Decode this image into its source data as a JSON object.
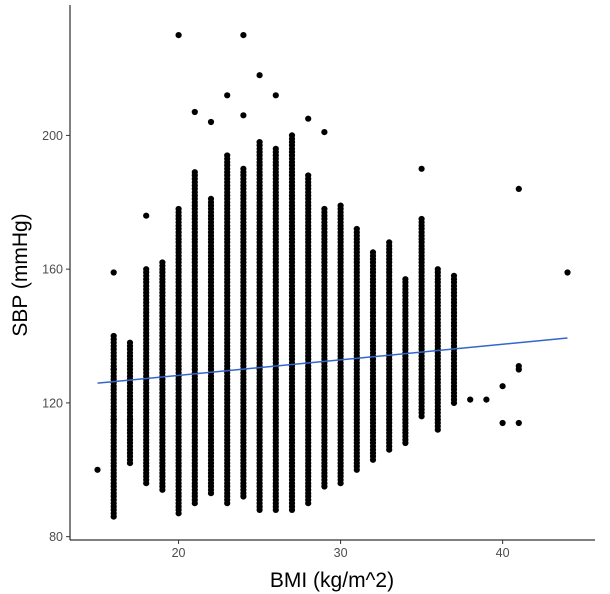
{
  "chart_data": {
    "type": "scatter",
    "title": "",
    "xlabel": "BMI (kg/m^2)",
    "ylabel": "SBP (mmHg)",
    "xlim": [
      13.3,
      45.7
    ],
    "ylim": [
      79,
      239
    ],
    "xticks": [
      20,
      30,
      40
    ],
    "yticks": [
      80,
      120,
      160,
      200
    ],
    "grid": false,
    "legend": "none",
    "point_color": "#000000",
    "trend_color": "#3366cc",
    "trend_line": {
      "x": [
        15,
        44
      ],
      "y": [
        125.9,
        139.4
      ]
    },
    "columns": [
      {
        "x": 15,
        "lo": 100,
        "hi": 100
      },
      {
        "x": 16,
        "lo": 86,
        "hi": 140
      },
      {
        "x": 17,
        "lo": 102,
        "hi": 138
      },
      {
        "x": 18,
        "lo": 96,
        "hi": 160
      },
      {
        "x": 19,
        "lo": 94,
        "hi": 162
      },
      {
        "x": 20,
        "lo": 87,
        "hi": 178
      },
      {
        "x": 21,
        "lo": 90,
        "hi": 189
      },
      {
        "x": 22,
        "lo": 93,
        "hi": 181
      },
      {
        "x": 23,
        "lo": 90,
        "hi": 194
      },
      {
        "x": 24,
        "lo": 92,
        "hi": 190
      },
      {
        "x": 25,
        "lo": 88,
        "hi": 198
      },
      {
        "x": 26,
        "lo": 88,
        "hi": 196
      },
      {
        "x": 27,
        "lo": 88,
        "hi": 200
      },
      {
        "x": 28,
        "lo": 90,
        "hi": 188
      },
      {
        "x": 29,
        "lo": 95,
        "hi": 178
      },
      {
        "x": 30,
        "lo": 96,
        "hi": 179
      },
      {
        "x": 31,
        "lo": 100,
        "hi": 172
      },
      {
        "x": 32,
        "lo": 103,
        "hi": 165
      },
      {
        "x": 33,
        "lo": 106,
        "hi": 168
      },
      {
        "x": 34,
        "lo": 108,
        "hi": 157
      },
      {
        "x": 35,
        "lo": 116,
        "hi": 175
      },
      {
        "x": 36,
        "lo": 112,
        "hi": 160
      },
      {
        "x": 37,
        "lo": 120,
        "hi": 158
      }
    ],
    "points": [
      {
        "x": 16,
        "y": 159
      },
      {
        "x": 16,
        "y": 115
      },
      {
        "x": 16,
        "y": 130
      },
      {
        "x": 17,
        "y": 115
      },
      {
        "x": 18,
        "y": 176
      },
      {
        "x": 20,
        "y": 230
      },
      {
        "x": 21,
        "y": 207
      },
      {
        "x": 22,
        "y": 204
      },
      {
        "x": 23,
        "y": 212
      },
      {
        "x": 24,
        "y": 230
      },
      {
        "x": 24,
        "y": 206
      },
      {
        "x": 25,
        "y": 218
      },
      {
        "x": 26,
        "y": 212
      },
      {
        "x": 28,
        "y": 205
      },
      {
        "x": 29,
        "y": 201
      },
      {
        "x": 35,
        "y": 190
      },
      {
        "x": 38,
        "y": 121
      },
      {
        "x": 39,
        "y": 121
      },
      {
        "x": 40,
        "y": 125
      },
      {
        "x": 40,
        "y": 114
      },
      {
        "x": 41,
        "y": 184
      },
      {
        "x": 41,
        "y": 131
      },
      {
        "x": 41,
        "y": 130
      },
      {
        "x": 41,
        "y": 114
      },
      {
        "x": 44,
        "y": 159
      }
    ]
  }
}
